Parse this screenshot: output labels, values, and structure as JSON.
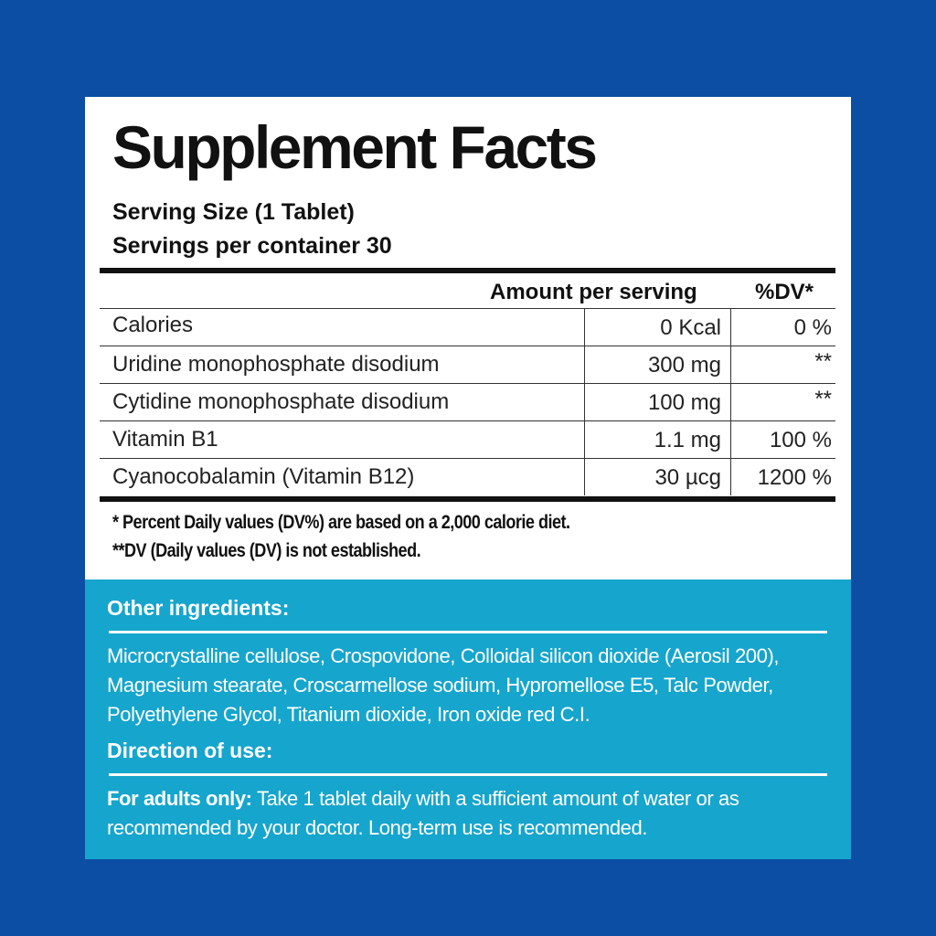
{
  "title": "Supplement Facts",
  "serving_size": "Serving Size (1 Tablet)",
  "servings_per_container": "Servings per container 30",
  "table": {
    "header_amount": "Amount per serving",
    "header_dv": "%DV*",
    "rows": [
      {
        "name": "Calories",
        "amount": "0 Kcal",
        "dv": "0 %"
      },
      {
        "name": "Uridine monophosphate disodium",
        "amount": "300  mg",
        "dv": "**"
      },
      {
        "name": "Cytidine monophosphate disodium",
        "amount": "100  mg",
        "dv": "**"
      },
      {
        "name": "Vitamin B1",
        "amount": "1.1 mg",
        "dv": "100 %"
      },
      {
        "name": "Cyanocobalamin  (Vitamin B12)",
        "amount": "30 µcg",
        "dv": "1200 %"
      }
    ]
  },
  "footnotes": {
    "note1": "* Percent Daily values (DV%) are based on a 2,000 calorie diet.",
    "note2": "**DV (Daily values (DV) is not established."
  },
  "other_ingredients": {
    "heading": "Other ingredients:",
    "text": "Microcrystalline cellulose, Crospovidone, Colloidal silicon dioxide (Aerosil 200), Magnesium stearate, Croscarmellose sodium, Hypromellose E5, Talc Powder, Polyethylene Glycol, Titanium dioxide, Iron oxide red C.I."
  },
  "direction": {
    "heading": "Direction of use:",
    "lead": "For adults only:",
    "text": "Take 1 tablet daily with a sufficient amount of water or as recommended by your doctor. Long-term use is recommended."
  },
  "colors": {
    "background": "#0c4ea3",
    "band": "#16a5cc",
    "panel": "#ffffff"
  }
}
